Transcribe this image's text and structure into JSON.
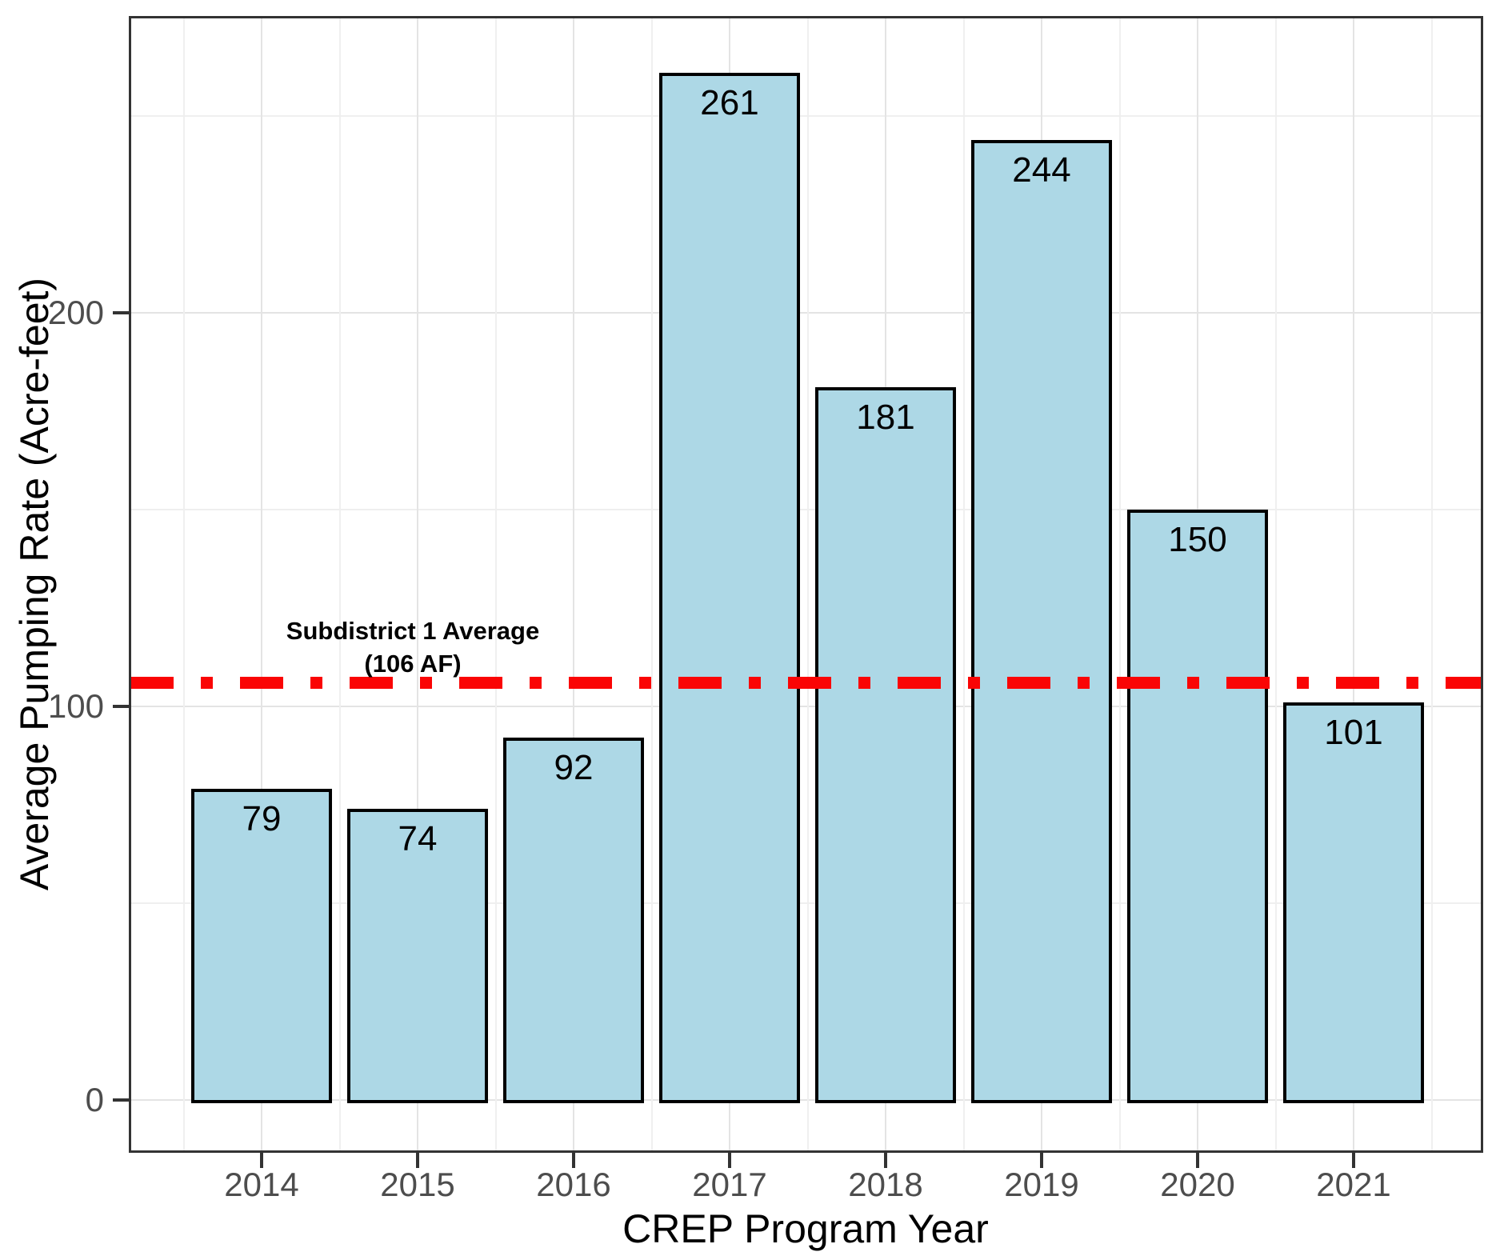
{
  "chart_data": {
    "type": "bar",
    "categories": [
      "2014",
      "2015",
      "2016",
      "2017",
      "2018",
      "2019",
      "2020",
      "2021"
    ],
    "values": [
      79,
      74,
      92,
      261,
      181,
      244,
      150,
      101
    ],
    "value_labels": [
      "79",
      "74",
      "92",
      "261",
      "181",
      "244",
      "150",
      "101"
    ],
    "title": "",
    "xlabel": "CREP Program Year",
    "ylabel": "Average Pumping Rate (Acre-feet)",
    "ylim": [
      0,
      275
    ],
    "yticks": [
      0,
      100,
      200
    ],
    "yticks_minor": [
      50,
      150,
      250
    ],
    "grid": "major and minor gridlines on, light gray on white panel",
    "legend": "none",
    "reference_line": {
      "value": 106,
      "style": "dot-dash",
      "color": "#fa0505",
      "label_line1": "Subdistrict 1 Average",
      "label_line2": "(106 AF)"
    },
    "colors": {
      "bar_fill": "#add8e6",
      "bar_border": "#000000",
      "panel_border": "#333333",
      "grid_major": "#e4e4e4",
      "grid_minor": "#efefef",
      "axis_tick": "#333333",
      "axis_text": "#4d4d4d",
      "axis_title": "#000000",
      "background": "#ffffff"
    }
  }
}
